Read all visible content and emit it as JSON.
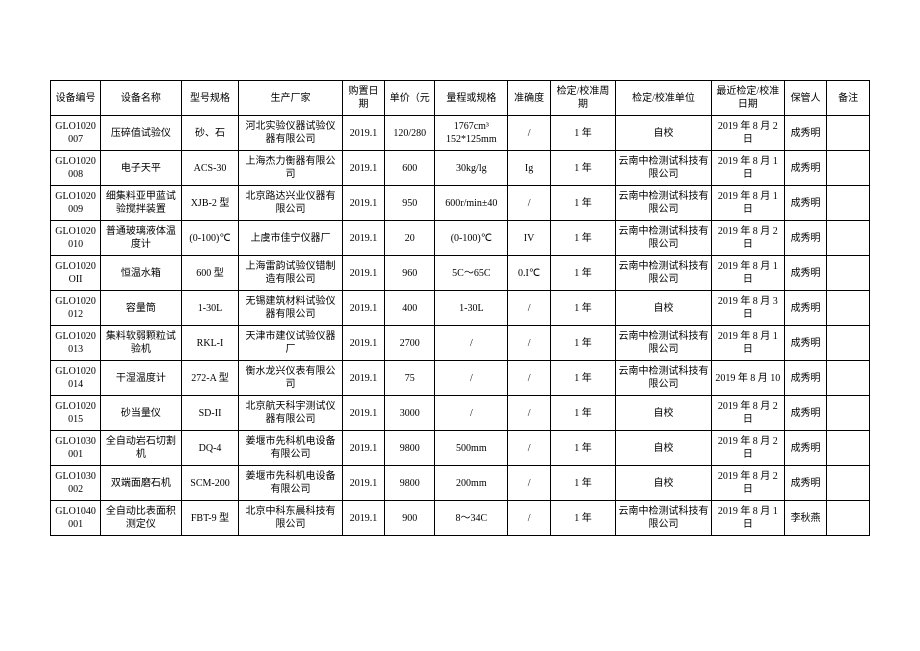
{
  "table": {
    "type": "table",
    "background_color": "#ffffff",
    "border_color": "#000000",
    "text_color": "#000000",
    "font_size": 10,
    "columns": [
      {
        "key": "id",
        "label": "设备编号",
        "class": "col-id"
      },
      {
        "key": "name",
        "label": "设备名称",
        "class": "col-name"
      },
      {
        "key": "model",
        "label": "型号规格",
        "class": "col-model"
      },
      {
        "key": "manufacturer",
        "label": "生产厂家",
        "class": "col-manufacturer"
      },
      {
        "key": "purchase",
        "label": "购置日期",
        "class": "col-purchase"
      },
      {
        "key": "price",
        "label": "单价（元",
        "class": "col-price"
      },
      {
        "key": "range",
        "label": "量程或规格",
        "class": "col-range"
      },
      {
        "key": "accuracy",
        "label": "准确度",
        "class": "col-accuracy"
      },
      {
        "key": "cycle",
        "label": "检定/校准周期",
        "class": "col-cycle"
      },
      {
        "key": "unit",
        "label": "检定/校准单位",
        "class": "col-unit"
      },
      {
        "key": "lastdate",
        "label": "最近检定/校准日期",
        "class": "col-lastdate"
      },
      {
        "key": "custodian",
        "label": "保管人",
        "class": "col-custodian"
      },
      {
        "key": "remark",
        "label": "备注",
        "class": "col-remark"
      }
    ],
    "rows": [
      {
        "id": "GLO1020007",
        "name": "压碎值试验仪",
        "model": "砂、石",
        "manufacturer": "河北实验仪器试验仪器有限公司",
        "purchase": "2019.1",
        "price": "120/280",
        "range": "1767cm³ 152*125mm",
        "accuracy": "/",
        "cycle": "1 年",
        "unit": "自校",
        "lastdate": "2019 年 8 月 2 日",
        "custodian": "成秀明",
        "remark": ""
      },
      {
        "id": "GLO1020008",
        "name": "电子天平",
        "model": "ACS-30",
        "manufacturer": "上海杰力衡器有限公司",
        "purchase": "2019.1",
        "price": "600",
        "range": "30kg/lg",
        "accuracy": "Ig",
        "cycle": "1 年",
        "unit": "云南中检测试科技有限公司",
        "lastdate": "2019 年 8 月 1 日",
        "custodian": "成秀明",
        "remark": ""
      },
      {
        "id": "GLO1020009",
        "name": "细集料亚甲蓝试验搅拌装置",
        "model": "XJB-2 型",
        "manufacturer": "北京路达兴业仪器有限公司",
        "purchase": "2019.1",
        "price": "950",
        "range": "600r/min±40",
        "accuracy": "/",
        "cycle": "1 年",
        "unit": "云南中检测试科技有限公司",
        "lastdate": "2019 年 8 月 1 日",
        "custodian": "成秀明",
        "remark": ""
      },
      {
        "id": "GLO1020010",
        "name": "普通玻璃液体温度计",
        "model": "(0-100)℃",
        "manufacturer": "上虞市佳宁仪器厂",
        "purchase": "2019.1",
        "price": "20",
        "range": "(0-100)℃",
        "accuracy": "IV",
        "cycle": "1 年",
        "unit": "云南中检测试科技有限公司",
        "lastdate": "2019 年 8 月 2 日",
        "custodian": "成秀明",
        "remark": ""
      },
      {
        "id": "GLO1020OII",
        "name": "恒温水箱",
        "model": "600 型",
        "manufacturer": "上海雷韵试验仪错制造有限公司",
        "purchase": "2019.1",
        "price": "960",
        "range": "5C～65C",
        "accuracy": "0.I℃",
        "cycle": "1 年",
        "unit": "云南中检测试科技有限公司",
        "lastdate": "2019 年 8 月 1 日",
        "custodian": "成秀明",
        "remark": ""
      },
      {
        "id": "GLO1020012",
        "name": "容量筒",
        "model": "1-30L",
        "manufacturer": "无锡建筑材料试验仪器有限公司",
        "purchase": "2019.1",
        "price": "400",
        "range": "1-30L",
        "accuracy": "/",
        "cycle": "1 年",
        "unit": "自校",
        "lastdate": "2019 年 8 月 3 日",
        "custodian": "成秀明",
        "remark": ""
      },
      {
        "id": "GLO1020013",
        "name": "集料软弱颗粒试验机",
        "model": "RKL-I",
        "manufacturer": "天津市建仪试验仪器厂",
        "purchase": "2019.1",
        "price": "2700",
        "range": "/",
        "accuracy": "/",
        "cycle": "1 年",
        "unit": "云南中检测试科技有限公司",
        "lastdate": "2019 年 8 月 1 日",
        "custodian": "成秀明",
        "remark": ""
      },
      {
        "id": "GLO1020014",
        "name": "干湿温度计",
        "model": "272-A 型",
        "manufacturer": "衡水龙兴仪表有限公司",
        "purchase": "2019.1",
        "price": "75",
        "range": "/",
        "accuracy": "/",
        "cycle": "1 年",
        "unit": "云南中检测试科技有限公司",
        "lastdate": "2019 年 8 月 10",
        "custodian": "成秀明",
        "remark": ""
      },
      {
        "id": "GLO1020015",
        "name": "砂当量仪",
        "model": "SD-II",
        "manufacturer": "北京航天科宇测试仪器有限公司",
        "purchase": "2019.1",
        "price": "3000",
        "range": "/",
        "accuracy": "/",
        "cycle": "1 年",
        "unit": "自校",
        "lastdate": "2019 年 8 月 2 日",
        "custodian": "成秀明",
        "remark": ""
      },
      {
        "id": "GLO1030001",
        "name": "全自动岩石切割机",
        "model": "DQ-4",
        "manufacturer": "姜堰市先科机电设备有限公司",
        "purchase": "2019.1",
        "price": "9800",
        "range": "500mm",
        "accuracy": "/",
        "cycle": "1 年",
        "unit": "自校",
        "lastdate": "2019 年 8 月 2 日",
        "custodian": "成秀明",
        "remark": ""
      },
      {
        "id": "GLO1030002",
        "name": "双端面磨石机",
        "model": "SCM-200",
        "manufacturer": "姜堰市先科机电设备有限公司",
        "purchase": "2019.1",
        "price": "9800",
        "range": "200mm",
        "accuracy": "/",
        "cycle": "1 年",
        "unit": "自校",
        "lastdate": "2019 年 8 月 2 日",
        "custodian": "成秀明",
        "remark": ""
      },
      {
        "id": "GLO1040001",
        "name": "全自动比表面积测定仪",
        "model": "FBT-9 型",
        "manufacturer": "北京中科东晨科技有限公司",
        "purchase": "2019.1",
        "price": "900",
        "range": "8～34C",
        "accuracy": "/",
        "cycle": "1 年",
        "unit": "云南中检测试科技有限公司",
        "lastdate": "2019 年 8 月 1 日",
        "custodian": "李秋燕",
        "remark": ""
      }
    ]
  }
}
